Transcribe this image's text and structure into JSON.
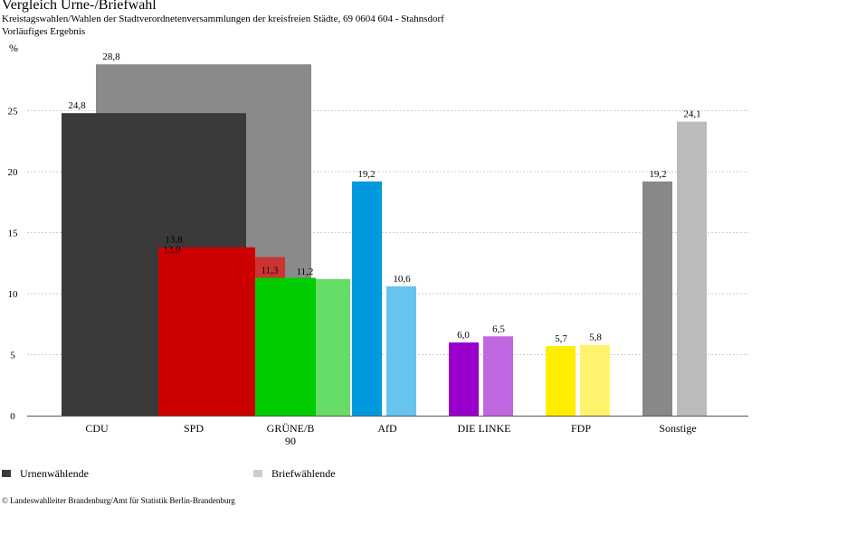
{
  "header": {
    "title": "Vergleich Urne-/Briefwahl",
    "subtitle": "Kreistagswahlen/Wahlen der Stadtverordnetenversammlungen der kreisfreien Städte, 69 0604 604 - Stahnsdorf",
    "note": "Vorläufiges Ergebnis"
  },
  "chart_data": {
    "type": "bar",
    "ylabel": "%",
    "ylim": [
      0,
      30
    ],
    "yticks": [
      0,
      5,
      10,
      15,
      20,
      25
    ],
    "grid": true,
    "categories": [
      "CDU",
      "SPD",
      "GRÜNE/B 90",
      "AfD",
      "DIE LINKE",
      "FDP",
      "Sonstige"
    ],
    "series": [
      {
        "name": "Urnenwählende",
        "values": [
          24.8,
          13.8,
          11.3,
          19.2,
          6.0,
          5.7,
          19.2
        ],
        "labels": [
          "24,8",
          "13,8",
          "11,3",
          "19,2",
          "6,0",
          "5,7",
          "19,2"
        ],
        "colors": [
          "#3a3a3a",
          "#cc0000",
          "#00cc00",
          "#0099dd",
          "#9900cc",
          "#ffee00",
          "#888888"
        ]
      },
      {
        "name": "Briefwählende",
        "values": [
          28.8,
          13.0,
          11.2,
          10.6,
          6.5,
          5.8,
          24.1
        ],
        "labels": [
          "28,8",
          "13,0",
          "11,2",
          "10,6",
          "6,5",
          "5,8",
          "24,1"
        ],
        "colors": [
          "#8a8a8a",
          "#cc3333",
          "#66dd66",
          "#66c4ee",
          "#c066e0",
          "#fff36e",
          "#bbbbbb"
        ]
      }
    ],
    "legend_colors": [
      "#3a3a3a",
      "#cccccc"
    ],
    "legend_placement": "bottom"
  },
  "footer": {
    "source": "© Landeswahlleiter Brandenburg/Amt für Statistik Berlin-Brandenburg"
  }
}
